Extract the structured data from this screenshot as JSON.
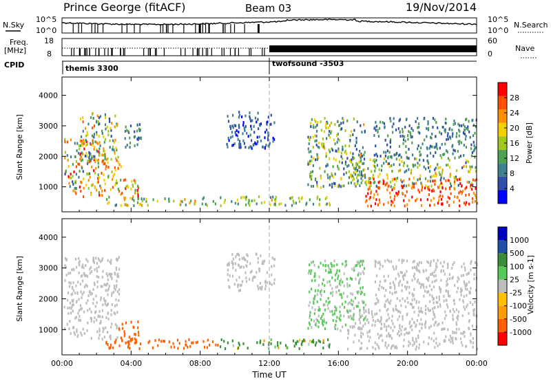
{
  "header": {
    "station": "Prince George (fitACF)",
    "beam": "Beam 03",
    "date": "19/Nov/2014"
  },
  "noise_panel": {
    "left_label": "N.Sky",
    "right_label": "N.Search",
    "left_ticks": [
      "10^5",
      "10^0"
    ],
    "right_ticks": [
      "10^5",
      "10^0"
    ]
  },
  "freq_panel": {
    "left_label_line1": "Freq.",
    "left_label_line2": "[MHz]",
    "right_label": "Nave",
    "left_ticks": [
      "18",
      "8"
    ],
    "right_ticks": [
      "60",
      "0"
    ]
  },
  "cpid_panel": {
    "label": "CPID",
    "segments": [
      {
        "name": "themis 3300",
        "start_hour": 0
      },
      {
        "name": "twofsound -3503",
        "start_hour": 12
      }
    ]
  },
  "x_axis": {
    "title": "Time UT",
    "range_hours": [
      0,
      24
    ],
    "ticks": [
      "00:00",
      "04:00",
      "08:00",
      "12:00",
      "16:00",
      "20:00",
      "00:00"
    ]
  },
  "colors": {
    "power_scale": [
      "#0000ff",
      "#2f4fa8",
      "#3f7f8f",
      "#4fa04f",
      "#a0c820",
      "#f0d000",
      "#ff9000",
      "#ff5000",
      "#ff0000"
    ],
    "velocity_scale": [
      "#ff0000",
      "#ff6000",
      "#ff9c00",
      "#ffc000",
      "#bdbdbd",
      "#58c858",
      "#3c8c3c",
      "#1f4fa8",
      "#0000c0"
    ],
    "ground_scatter": "#bdbdbd"
  },
  "chart_data": [
    {
      "type": "heatmap",
      "name": "power",
      "ylabel": "Slant Range [km]",
      "ylim": [
        180,
        4600
      ],
      "y_ticks": [
        1000,
        2000,
        3000,
        4000
      ],
      "colorbar_label": "Power [dB]",
      "colorbar_ticks": [
        4,
        8,
        12,
        16,
        20,
        24,
        28
      ],
      "colorbar_range": [
        0,
        32
      ],
      "regions": [
        {
          "t0": 0.1,
          "t1": 2.3,
          "r0": 700,
          "r1": 2600,
          "vmin": 6,
          "vmax": 30
        },
        {
          "t0": 1.0,
          "t1": 3.2,
          "r0": 1800,
          "r1": 3500,
          "vmin": 6,
          "vmax": 26
        },
        {
          "t0": 2.0,
          "t1": 3.4,
          "r0": 900,
          "r1": 2100,
          "vmin": 12,
          "vmax": 30
        },
        {
          "t0": 3.2,
          "t1": 4.4,
          "r0": 600,
          "r1": 1300,
          "vmin": 14,
          "vmax": 30
        },
        {
          "t0": 3.6,
          "t1": 4.6,
          "r0": 2300,
          "r1": 3100,
          "vmin": 4,
          "vmax": 14
        },
        {
          "t0": 2.5,
          "t1": 15.5,
          "r0": 420,
          "r1": 720,
          "vmin": 8,
          "vmax": 22
        },
        {
          "t0": 9.5,
          "t1": 12.3,
          "r0": 2300,
          "r1": 3500,
          "vmin": 2,
          "vmax": 10
        },
        {
          "t0": 14.2,
          "t1": 17.5,
          "r0": 1000,
          "r1": 3300,
          "vmin": 4,
          "vmax": 22
        },
        {
          "t0": 16.5,
          "t1": 24.0,
          "r0": 1000,
          "r1": 2000,
          "vmin": 6,
          "vmax": 22
        },
        {
          "t0": 17.5,
          "t1": 24.0,
          "r0": 400,
          "r1": 1300,
          "vmin": 22,
          "vmax": 32
        },
        {
          "t0": 18.0,
          "t1": 24.0,
          "r0": 2000,
          "r1": 3300,
          "vmin": 4,
          "vmax": 14
        }
      ]
    },
    {
      "type": "heatmap",
      "name": "velocity",
      "ylabel": "Slant Range [km]",
      "ylim": [
        180,
        4600
      ],
      "y_ticks": [
        1000,
        2000,
        3000,
        4000
      ],
      "colorbar_label": "Velocity [m s-1]",
      "colorbar_ticks": [
        1000,
        500,
        100,
        25,
        -25,
        -100,
        -500,
        -1000
      ],
      "regions": [
        {
          "t0": 0.1,
          "t1": 3.3,
          "r0": 700,
          "r1": 3400,
          "vmin": -25,
          "vmax": 25
        },
        {
          "t0": 3.2,
          "t1": 4.4,
          "r0": 600,
          "r1": 1300,
          "vmin": -500,
          "vmax": -100
        },
        {
          "t0": 2.5,
          "t1": 9.0,
          "r0": 420,
          "r1": 720,
          "vmin": -500,
          "vmax": -100
        },
        {
          "t0": 9.0,
          "t1": 15.5,
          "r0": 420,
          "r1": 720,
          "vmin": -100,
          "vmax": 500
        },
        {
          "t0": 9.5,
          "t1": 12.3,
          "r0": 2300,
          "r1": 3500,
          "vmin": -25,
          "vmax": 25
        },
        {
          "t0": 14.2,
          "t1": 17.5,
          "r0": 1000,
          "r1": 3300,
          "vmin": -25,
          "vmax": 100
        },
        {
          "t0": 16.5,
          "t1": 24.0,
          "r0": 400,
          "r1": 2000,
          "vmin": -25,
          "vmax": 25
        },
        {
          "t0": 18.0,
          "t1": 24.0,
          "r0": 2000,
          "r1": 3300,
          "vmin": -25,
          "vmax": 25
        }
      ]
    }
  ]
}
